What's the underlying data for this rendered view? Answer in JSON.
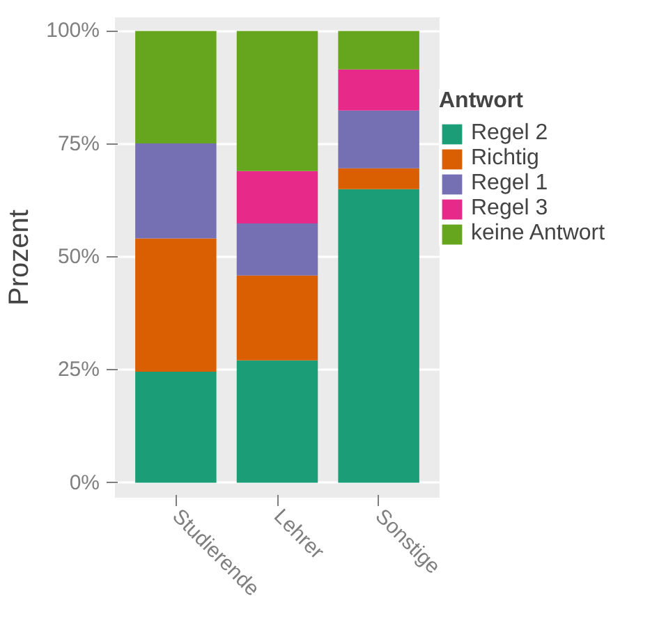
{
  "chart_data": {
    "type": "bar",
    "stacked": true,
    "ylabel": "Prozent",
    "legend_title": "Antwort",
    "legend": "right",
    "grid": "y",
    "categories": [
      "Studierende",
      "Lehrer",
      "Sonstige"
    ],
    "series": [
      {
        "name": "Regel 2",
        "color": "#1b9e77",
        "values": [
          24.6,
          27.1,
          65.0
        ]
      },
      {
        "name": "Richtig",
        "color": "#d95f02",
        "values": [
          29.5,
          18.8,
          4.6
        ]
      },
      {
        "name": "Regel 1",
        "color": "#7570b3",
        "values": [
          21.0,
          11.5,
          12.8
        ]
      },
      {
        "name": "Regel 3",
        "color": "#e7298a",
        "values": [
          0,
          11.6,
          9.1
        ]
      },
      {
        "name": "keine Antwort",
        "color": "#66a61e",
        "values": [
          24.9,
          31.0,
          8.5
        ]
      }
    ],
    "ylim": [
      -3.3,
      103
    ],
    "yticks": [
      {
        "value": 0,
        "label": "0%"
      },
      {
        "value": 25,
        "label": "25%"
      },
      {
        "value": 50,
        "label": "50%"
      },
      {
        "value": 75,
        "label": "75%"
      },
      {
        "value": 100,
        "label": "100%"
      }
    ]
  }
}
